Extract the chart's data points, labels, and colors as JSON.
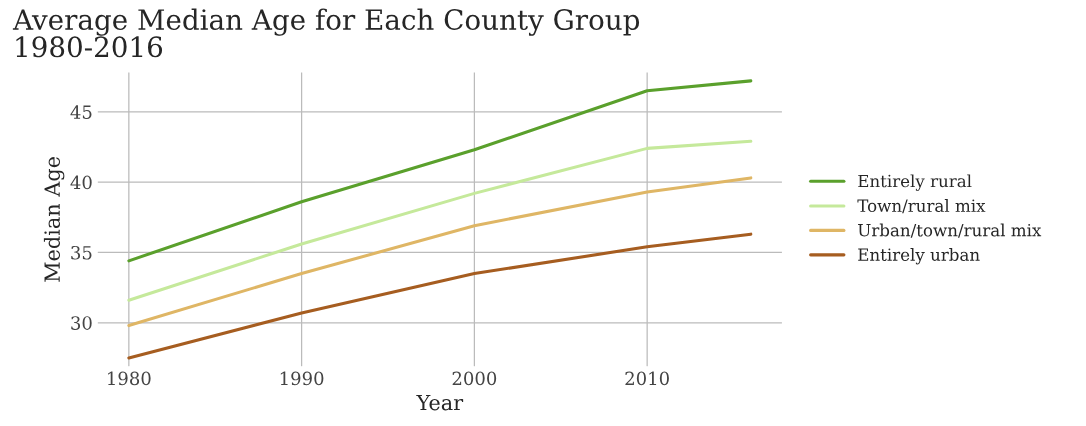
{
  "chart_data": {
    "type": "line",
    "title": "Average Median Age for Each County Group\n1980-2016",
    "xlabel": "Year",
    "ylabel": "Median Age",
    "x": [
      1980,
      1990,
      2000,
      2010,
      2016
    ],
    "series": [
      {
        "name": "Entirely rural",
        "color": "#5aa02c",
        "values": [
          34.4,
          38.6,
          42.3,
          46.5,
          47.2
        ]
      },
      {
        "name": "Town/rural mix",
        "color": "#c5e99b",
        "values": [
          31.6,
          35.6,
          39.2,
          42.4,
          42.9
        ]
      },
      {
        "name": "Urban/town/rural mix",
        "color": "#dfb665",
        "values": [
          29.8,
          33.5,
          36.9,
          39.3,
          40.3
        ]
      },
      {
        "name": "Entirely urban",
        "color": "#a65d20",
        "values": [
          27.5,
          30.7,
          33.5,
          35.4,
          36.3
        ]
      }
    ],
    "xlim": [
      1978.2,
      2017.8
    ],
    "xticks": [
      1980,
      1990,
      2000,
      2010
    ],
    "ylim": [
      26.9,
      47.8
    ],
    "yticks": [
      30,
      35,
      40,
      45
    ],
    "grid": true,
    "legend": "right",
    "marker": "none",
    "line_style": "solid"
  }
}
